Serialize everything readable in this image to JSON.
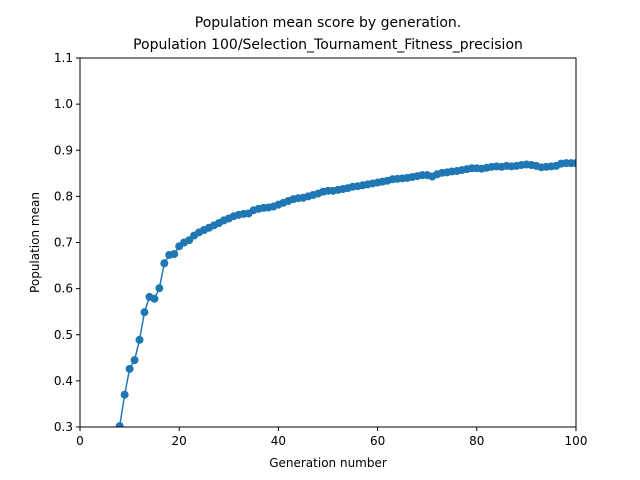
{
  "chart_data": {
    "type": "line",
    "title": [
      "Population mean score by generation.",
      " Population 100/Selection_Tournament_Fitness_precision"
    ],
    "x_label": "Generation number",
    "y_label": "Population mean",
    "x": [
      8,
      9,
      10,
      11,
      12,
      13,
      14,
      15,
      16,
      17,
      18,
      19,
      20,
      21,
      22,
      23,
      24,
      25,
      26,
      27,
      28,
      29,
      30,
      31,
      32,
      33,
      34,
      35,
      36,
      37,
      38,
      39,
      40,
      41,
      42,
      43,
      44,
      45,
      46,
      47,
      48,
      49,
      50,
      51,
      52,
      53,
      54,
      55,
      56,
      57,
      58,
      59,
      60,
      61,
      62,
      63,
      64,
      65,
      66,
      67,
      68,
      69,
      70,
      71,
      72,
      73,
      74,
      75,
      76,
      77,
      78,
      79,
      80,
      81,
      82,
      83,
      84,
      85,
      86,
      87,
      88,
      89,
      90,
      91,
      92,
      93,
      94,
      95,
      96,
      97,
      98,
      99,
      100
    ],
    "series": [
      {
        "color": "#1f77b4",
        "values": [
          0.302,
          0.37,
          0.426,
          0.445,
          0.489,
          0.549,
          0.582,
          0.578,
          0.601,
          0.655,
          0.673,
          0.675,
          0.692,
          0.7,
          0.705,
          0.715,
          0.722,
          0.727,
          0.732,
          0.737,
          0.742,
          0.748,
          0.752,
          0.757,
          0.76,
          0.762,
          0.763,
          0.77,
          0.773,
          0.775,
          0.776,
          0.778,
          0.782,
          0.786,
          0.79,
          0.794,
          0.796,
          0.797,
          0.8,
          0.803,
          0.806,
          0.81,
          0.812,
          0.812,
          0.814,
          0.816,
          0.818,
          0.821,
          0.822,
          0.824,
          0.826,
          0.828,
          0.83,
          0.832,
          0.834,
          0.837,
          0.838,
          0.839,
          0.84,
          0.842,
          0.844,
          0.846,
          0.846,
          0.843,
          0.848,
          0.851,
          0.852,
          0.854,
          0.855,
          0.857,
          0.859,
          0.861,
          0.861,
          0.86,
          0.862,
          0.864,
          0.865,
          0.864,
          0.866,
          0.865,
          0.866,
          0.868,
          0.869,
          0.868,
          0.866,
          0.863,
          0.864,
          0.865,
          0.866,
          0.871,
          0.872,
          0.872,
          0.872
        ]
      }
    ],
    "xlim": [
      0,
      100
    ],
    "xticks": [
      0,
      20,
      40,
      60,
      80,
      100
    ],
    "ylim": [
      0.3,
      1.1
    ],
    "yticks": [
      0.3,
      0.4,
      0.5,
      0.6,
      0.7,
      0.8,
      0.9,
      {
        "value": 1,
        "label": "1.0"
      },
      1.1
    ]
  }
}
